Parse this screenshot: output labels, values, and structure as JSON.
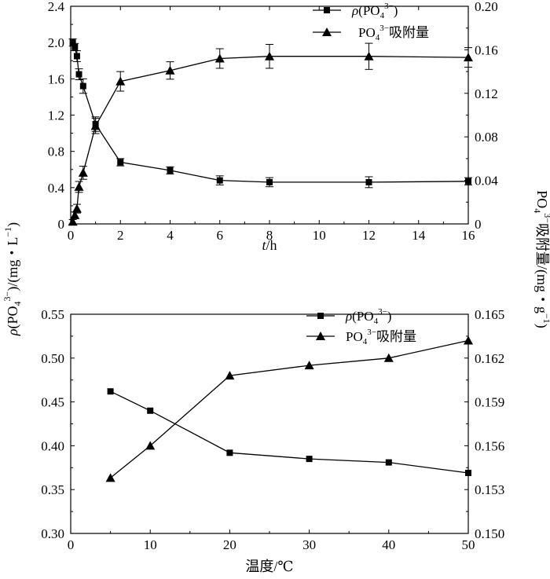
{
  "chart_data": [
    {
      "type": "line",
      "x": [
        0.083,
        0.167,
        0.25,
        0.333,
        0.5,
        1,
        2,
        4,
        6,
        8,
        12,
        16
      ],
      "xlabel_italic": "t",
      "xlabel_rest": "/h",
      "xlim": [
        0,
        16
      ],
      "xticks": [
        "0",
        "2",
        "4",
        "6",
        "8",
        "10",
        "12",
        "14",
        "16"
      ],
      "ylim_left": [
        0,
        2.4
      ],
      "yticks_left": [
        "0",
        "0.4",
        "0.8",
        "1.2",
        "1.6",
        "2.0",
        "2.4"
      ],
      "ylim_right": [
        0,
        0.2
      ],
      "yticks_right": [
        "0",
        "0.04",
        "0.08",
        "0.12",
        "0.16",
        "0.20"
      ],
      "series": [
        {
          "name": "ρ(PO₄³⁻)",
          "legend_rho": "ρ",
          "legend_main": "(PO",
          "legend_sub": "4",
          "legend_sup": "3−",
          "legend_tail": ")",
          "axis": "left",
          "marker": "square",
          "values": [
            2.0,
            1.95,
            1.85,
            1.65,
            1.52,
            1.1,
            0.68,
            0.59,
            0.48,
            0.46,
            0.46,
            0.47
          ],
          "errors": [
            0.04,
            0.04,
            0.06,
            0.06,
            0.08,
            0.08,
            0.04,
            0.04,
            0.05,
            0.05,
            0.06,
            0.04
          ]
        },
        {
          "name": "PO₄³⁻吸附量",
          "legend_main": "PO",
          "legend_sub": "4",
          "legend_sup": "3−",
          "legend_tail": "吸附量",
          "axis": "right",
          "marker": "triangle",
          "values": [
            0.002,
            0.008,
            0.014,
            0.034,
            0.047,
            0.09,
            0.131,
            0.141,
            0.152,
            0.154,
            0.154,
            0.153
          ],
          "errors": [
            0.002,
            0.003,
            0.004,
            0.005,
            0.006,
            0.007,
            0.009,
            0.008,
            0.009,
            0.011,
            0.012,
            0.009
          ]
        }
      ]
    },
    {
      "type": "line",
      "x": [
        5,
        10,
        20,
        30,
        40,
        50
      ],
      "xlabel": "温度/℃",
      "xlim": [
        0,
        50
      ],
      "xticks": [
        "0",
        "10",
        "20",
        "30",
        "40",
        "50"
      ],
      "ylim_left": [
        0.3,
        0.55
      ],
      "yticks_left": [
        "0.30",
        "0.35",
        "0.40",
        "0.45",
        "0.50",
        "0.55"
      ],
      "ylim_right": [
        0.15,
        0.165
      ],
      "yticks_right": [
        "0.150",
        "0.153",
        "0.156",
        "0.159",
        "0.162",
        "0.165"
      ],
      "series": [
        {
          "name": "ρ(PO₄³⁻)",
          "legend_rho": "ρ",
          "legend_main": "(PO",
          "legend_sub": "4",
          "legend_sup": "3−",
          "legend_tail": ")",
          "axis": "left",
          "marker": "square",
          "values": [
            0.462,
            0.44,
            0.392,
            0.385,
            0.381,
            0.369
          ]
        },
        {
          "name": "PO₄³⁻吸附量",
          "legend_main": "PO",
          "legend_sub": "4",
          "legend_sup": "3−",
          "legend_tail": "吸附量",
          "axis": "right",
          "marker": "triangle",
          "values": [
            0.1538,
            0.156,
            0.1608,
            0.1615,
            0.162,
            0.1632
          ]
        }
      ]
    }
  ],
  "shared_labels": {
    "left_rho": "ρ",
    "left_a": "(PO",
    "left_sub": "4",
    "left_sup": "3−",
    "left_b": ")/(mg・L",
    "left_sup2": "−1",
    "left_c": ")",
    "right_a": "PO",
    "right_sub": "4",
    "right_sup": "3−",
    "right_b": "吸附量/(mg・g",
    "right_sup2": "−1",
    "right_c": ")"
  }
}
